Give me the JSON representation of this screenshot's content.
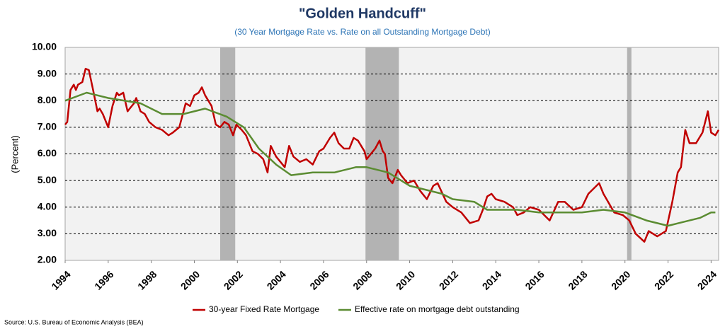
{
  "chart_data": {
    "type": "line",
    "title": "\"Golden Handcuff\"",
    "subtitle": "(30 Year Mortgage Rate vs. Rate on all Outstanding Mortgage Debt)",
    "y_label": "(Percent)",
    "source": "Source: U.S. Bureau of Economic Analysis (BEA)",
    "xlim": [
      1994,
      2024.35
    ],
    "xticks": [
      1994,
      1996,
      1998,
      2000,
      2002,
      2004,
      2006,
      2008,
      2010,
      2012,
      2014,
      2016,
      2018,
      2020,
      2022,
      2024
    ],
    "ylim": [
      2,
      10
    ],
    "yticks": [
      {
        "value": 2,
        "label": "2.00"
      },
      {
        "value": 3,
        "label": "3.00"
      },
      {
        "value": 4,
        "label": "4.00"
      },
      {
        "value": 5,
        "label": "5.00"
      },
      {
        "value": 6,
        "label": "6.00"
      },
      {
        "value": 7,
        "label": "7.00"
      },
      {
        "value": 8,
        "label": "8.00"
      },
      {
        "value": 9,
        "label": "9.00"
      },
      {
        "value": 10,
        "label": "10.00"
      }
    ],
    "grid": true,
    "legend": "bottom",
    "shaded_color": "#b3b3b3",
    "shaded_periods": [
      [
        2001.2,
        2001.9
      ],
      [
        2007.95,
        2009.5
      ],
      [
        2020.1,
        2020.3
      ]
    ],
    "series": [
      {
        "name": "30-year Fixed Rate Mortgage",
        "color": "#c00000",
        "x": [
          1994.0,
          1994.1,
          1994.25,
          1994.4,
          1994.5,
          1994.6,
          1994.8,
          1994.95,
          1995.1,
          1995.3,
          1995.5,
          1995.6,
          1995.75,
          1995.95,
          1996.0,
          1996.2,
          1996.4,
          1996.5,
          1996.7,
          1996.9,
          1997.0,
          1997.2,
          1997.3,
          1997.5,
          1997.7,
          1997.9,
          1998.2,
          1998.5,
          1998.8,
          1999.0,
          1999.3,
          1999.6,
          1999.8,
          2000.0,
          2000.2,
          2000.35,
          2000.5,
          2000.8,
          2001.0,
          2001.2,
          2001.4,
          2001.6,
          2001.8,
          2001.95,
          2002.2,
          2002.4,
          2002.7,
          2002.95,
          2003.2,
          2003.4,
          2003.55,
          2003.8,
          2004.0,
          2004.2,
          2004.4,
          2004.6,
          2004.9,
          2005.2,
          2005.5,
          2005.8,
          2006.0,
          2006.3,
          2006.5,
          2006.7,
          2006.95,
          2007.2,
          2007.4,
          2007.6,
          2007.9,
          2008.0,
          2008.2,
          2008.4,
          2008.6,
          2008.75,
          2008.85,
          2009.0,
          2009.2,
          2009.45,
          2009.6,
          2009.9,
          2010.2,
          2010.5,
          2010.8,
          2011.1,
          2011.3,
          2011.7,
          2012.0,
          2012.4,
          2012.8,
          2013.2,
          2013.4,
          2013.6,
          2013.8,
          2014.0,
          2014.4,
          2014.8,
          2015.0,
          2015.3,
          2015.6,
          2016.0,
          2016.5,
          2016.9,
          2017.2,
          2017.6,
          2018.0,
          2018.3,
          2018.8,
          2019.0,
          2019.5,
          2019.9,
          2020.2,
          2020.5,
          2020.9,
          2021.1,
          2021.5,
          2021.9,
          2022.2,
          2022.45,
          2022.6,
          2022.8,
          2023.0,
          2023.3,
          2023.6,
          2023.85,
          2024.0,
          2024.2,
          2024.35
        ],
        "values": [
          7.1,
          7.2,
          8.4,
          8.6,
          8.4,
          8.6,
          8.7,
          9.2,
          9.15,
          8.4,
          7.6,
          7.7,
          7.5,
          7.1,
          7.0,
          7.8,
          8.3,
          8.2,
          8.3,
          7.6,
          7.7,
          7.9,
          8.1,
          7.6,
          7.5,
          7.2,
          7.0,
          6.9,
          6.7,
          6.8,
          7.0,
          7.9,
          7.8,
          8.2,
          8.3,
          8.5,
          8.2,
          7.8,
          7.1,
          7.0,
          7.2,
          7.1,
          6.7,
          7.1,
          6.9,
          6.7,
          6.1,
          6.0,
          5.8,
          5.3,
          6.3,
          5.9,
          5.7,
          5.5,
          6.3,
          5.9,
          5.7,
          5.8,
          5.6,
          6.1,
          6.2,
          6.6,
          6.8,
          6.4,
          6.2,
          6.2,
          6.6,
          6.5,
          6.1,
          5.8,
          6.0,
          6.2,
          6.5,
          6.1,
          6.0,
          5.1,
          4.9,
          5.4,
          5.2,
          4.9,
          5.0,
          4.6,
          4.3,
          4.8,
          4.9,
          4.2,
          4.0,
          3.8,
          3.4,
          3.5,
          3.9,
          4.4,
          4.5,
          4.3,
          4.2,
          4.0,
          3.7,
          3.8,
          4.0,
          3.9,
          3.5,
          4.2,
          4.2,
          3.9,
          4.0,
          4.5,
          4.9,
          4.5,
          3.8,
          3.7,
          3.5,
          3.0,
          2.7,
          3.1,
          2.9,
          3.1,
          4.2,
          5.3,
          5.5,
          6.9,
          6.4,
          6.4,
          6.8,
          7.6,
          6.8,
          6.7,
          6.9
        ]
      },
      {
        "name": "Effective rate on mortgage debt outstanding",
        "color": "#5b8c32",
        "x": [
          1994.0,
          1995.0,
          1996.0,
          1997.5,
          1998.5,
          1999.5,
          2000.5,
          2001.5,
          2002.3,
          2003.0,
          2003.8,
          2004.5,
          2005.5,
          2006.5,
          2007.5,
          2008.0,
          2009.0,
          2010.0,
          2011.5,
          2012.0,
          2013.0,
          2013.6,
          2015.0,
          2016.0,
          2018.0,
          2019.0,
          2020.0,
          2021.0,
          2022.0,
          2022.5,
          2023.5,
          2024.0,
          2024.2
        ],
        "values": [
          8.0,
          8.3,
          8.1,
          7.9,
          7.5,
          7.5,
          7.7,
          7.4,
          7.0,
          6.2,
          5.6,
          5.2,
          5.3,
          5.3,
          5.5,
          5.5,
          5.3,
          4.8,
          4.5,
          4.3,
          4.2,
          3.9,
          3.9,
          3.8,
          3.8,
          3.9,
          3.8,
          3.5,
          3.3,
          3.4,
          3.6,
          3.8,
          3.8
        ]
      }
    ]
  }
}
